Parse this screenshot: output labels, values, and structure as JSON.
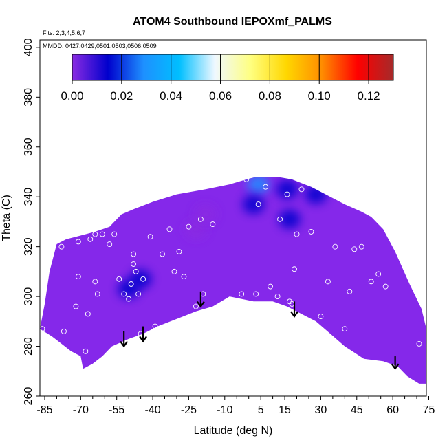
{
  "chart_data": {
    "type": "heatmap",
    "title": "ATOM4 Southbound IEPOXmf_PALMS",
    "flights_note": "Flts: 2,3,4,5,6,7",
    "dates_note": "MMDD: 0427,0429,0501,0503,0506,0509",
    "xlabel": "Latitude (deg N)",
    "ylabel": "Theta (C)",
    "xlim": [
      -87,
      74
    ],
    "ylim": [
      260,
      403
    ],
    "x_ticks": [
      -85,
      -70,
      -55,
      -40,
      -25,
      -10,
      5,
      15,
      30,
      45,
      60,
      75
    ],
    "x_tick_labels": [
      "-85",
      "-70",
      "-55",
      "-40",
      "-25",
      "-10",
      "5",
      "15",
      "30",
      "45",
      "60",
      "75"
    ],
    "y_ticks": [
      260,
      280,
      300,
      320,
      340,
      360,
      380,
      400
    ],
    "y_tick_labels": [
      "260",
      "280",
      "300",
      "320",
      "340",
      "360",
      "380",
      "400"
    ],
    "colorbar": {
      "range": [
        0,
        0.13
      ],
      "ticks": [
        0.0,
        0.02,
        0.04,
        0.06,
        0.08,
        0.1,
        0.12
      ],
      "tick_labels": [
        "0.00",
        "0.02",
        "0.04",
        "0.06",
        "0.08",
        "0.10",
        "0.12"
      ],
      "colors": [
        "#8a2be2",
        "#0000cd",
        "#1e90ff",
        "#00bfff",
        "#f0f8ff",
        "#ffff80",
        "#ffd700",
        "#ff8c00",
        "#ff0000",
        "#a52a2a"
      ]
    },
    "fill_color": "#8528ea",
    "coverage": {
      "upper_boundary": [
        [
          -87,
          287
        ],
        [
          -85,
          297
        ],
        [
          -83,
          310
        ],
        [
          -80,
          321
        ],
        [
          -76,
          323
        ],
        [
          -72,
          324
        ],
        [
          -64,
          326
        ],
        [
          -58,
          328
        ],
        [
          -53,
          333
        ],
        [
          -48,
          335
        ],
        [
          -40,
          338
        ],
        [
          -30,
          341
        ],
        [
          -18,
          343
        ],
        [
          -8,
          345
        ],
        [
          -1,
          347
        ],
        [
          3,
          348
        ],
        [
          12,
          348
        ],
        [
          18,
          347
        ],
        [
          26,
          344
        ],
        [
          34,
          340
        ],
        [
          40,
          337
        ],
        [
          47,
          334
        ],
        [
          51,
          332
        ],
        [
          56,
          327
        ],
        [
          61,
          318
        ],
        [
          67,
          305
        ],
        [
          72,
          295
        ],
        [
          74,
          287
        ]
      ],
      "lower_boundary": [
        [
          -87,
          287
        ],
        [
          -82,
          284
        ],
        [
          -78,
          281
        ],
        [
          -74,
          278
        ],
        [
          -70,
          276
        ],
        [
          -69,
          271
        ],
        [
          -65,
          273
        ],
        [
          -61,
          276
        ],
        [
          -57,
          280
        ],
        [
          -50,
          283
        ],
        [
          -44,
          285
        ],
        [
          -38,
          288
        ],
        [
          -30,
          291
        ],
        [
          -22,
          294
        ],
        [
          -15,
          296
        ],
        [
          -8,
          300
        ],
        [
          2,
          298
        ],
        [
          10,
          298
        ],
        [
          16,
          296
        ],
        [
          22,
          293
        ],
        [
          28,
          290
        ],
        [
          34,
          285
        ],
        [
          40,
          280
        ],
        [
          48,
          275
        ],
        [
          56,
          274
        ],
        [
          62,
          272
        ],
        [
          66,
          268
        ],
        [
          71,
          265
        ],
        [
          74,
          265
        ]
      ]
    },
    "high_regions": [
      {
        "lat": 4,
        "theta": 345,
        "value": 0.03
      },
      {
        "lat": 17,
        "theta": 331,
        "value": 0.015
      },
      {
        "lat": 2,
        "theta": 337,
        "value": 0.008
      },
      {
        "lat": -22,
        "theta": 327,
        "value": 0.007
      },
      {
        "lat": -18,
        "theta": 333,
        "value": 0.005
      },
      {
        "lat": -45,
        "theta": 307,
        "value": 0.012
      },
      {
        "lat": -50,
        "theta": 303,
        "value": 0.008
      },
      {
        "lat": 28,
        "theta": 341,
        "value": 0.008
      },
      {
        "lat": 16,
        "theta": 343,
        "value": 0.01
      }
    ],
    "sample_points": [
      [
        -86,
        287
      ],
      [
        -77,
        286
      ],
      [
        -72,
        296
      ],
      [
        -71,
        308
      ],
      [
        -68,
        278
      ],
      [
        -67,
        293
      ],
      [
        -63,
        301
      ],
      [
        -64,
        306
      ],
      [
        -64,
        325
      ],
      [
        -61,
        325
      ],
      [
        -66,
        327
      ],
      [
        -66,
        323
      ],
      [
        -71,
        322
      ],
      [
        -78,
        320
      ],
      [
        -58,
        321
      ],
      [
        -56,
        325
      ],
      [
        -54,
        307
      ],
      [
        -52,
        301
      ],
      [
        -50,
        299
      ],
      [
        -48,
        313
      ],
      [
        -49,
        305
      ],
      [
        -47,
        310
      ],
      [
        -46,
        301
      ],
      [
        -48,
        317
      ],
      [
        -44,
        307
      ],
      [
        -45,
        285
      ],
      [
        -41,
        324
      ],
      [
        -39,
        288
      ],
      [
        -36,
        317
      ],
      [
        -31,
        310
      ],
      [
        -33,
        327
      ],
      [
        -29,
        318
      ],
      [
        -27,
        308
      ],
      [
        -25,
        328
      ],
      [
        -22,
        296
      ],
      [
        -24,
        291
      ],
      [
        -19,
        301
      ],
      [
        -20,
        331
      ],
      [
        -15,
        329
      ],
      [
        -3,
        301
      ],
      [
        -1,
        347
      ],
      [
        1,
        349
      ],
      [
        4,
        337
      ],
      [
        3,
        301
      ],
      [
        7,
        344
      ],
      [
        9,
        304
      ],
      [
        12,
        300
      ],
      [
        13,
        331
      ],
      [
        16,
        341
      ],
      [
        17,
        298
      ],
      [
        18,
        297
      ],
      [
        19,
        311
      ],
      [
        20,
        325
      ],
      [
        22,
        343
      ],
      [
        26,
        326
      ],
      [
        30,
        292
      ],
      [
        33,
        306
      ],
      [
        36,
        320
      ],
      [
        40,
        287
      ],
      [
        42,
        302
      ],
      [
        44,
        319
      ],
      [
        47,
        320
      ],
      [
        51,
        306
      ],
      [
        52,
        333
      ],
      [
        54,
        309
      ],
      [
        57,
        304
      ],
      [
        46,
        273
      ],
      [
        53,
        272
      ],
      [
        57,
        272
      ],
      [
        71,
        281
      ]
    ],
    "arrows": [
      -52,
      -44,
      -20,
      19,
      61
    ],
    "arrow_theta_top": [
      286,
      288,
      302,
      298,
      276
    ],
    "arrow_theta_bottom": [
      280,
      282,
      296,
      292,
      271
    ]
  }
}
